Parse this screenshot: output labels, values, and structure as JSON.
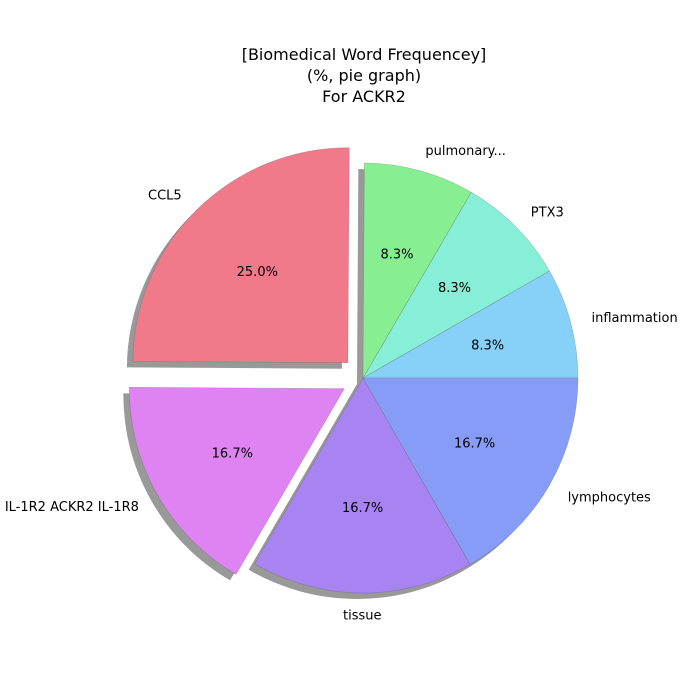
{
  "chart_data": {
    "type": "pie",
    "title_lines": [
      "[Biomedical Word Frequencey]",
      "(%, pie graph)",
      "For ACKR2"
    ],
    "slices": [
      {
        "label": "inflammation",
        "value": 8.3,
        "pct_label": "8.3%",
        "color": "#87d0f7",
        "exploded": false
      },
      {
        "label": "PTX3",
        "value": 8.3,
        "pct_label": "8.3%",
        "color": "#87eed8",
        "exploded": false
      },
      {
        "label": "pulmonary...",
        "value": 8.3,
        "pct_label": "8.3%",
        "color": "#87ef92",
        "exploded": false
      },
      {
        "label": "CCL5",
        "value": 25.0,
        "pct_label": "25.0%",
        "color": "#f07a8a",
        "exploded": true
      },
      {
        "label": "IL-1R2 ACKR2 IL-1R8",
        "value": 16.7,
        "pct_label": "16.7%",
        "color": "#df82f2",
        "exploded": true
      },
      {
        "label": "tissue",
        "value": 16.7,
        "pct_label": "16.7%",
        "color": "#a883f2",
        "exploded": false
      },
      {
        "label": "lymphocytes",
        "value": 16.7,
        "pct_label": "16.7%",
        "color": "#879cf7",
        "exploded": false
      }
    ],
    "start_angle": 0,
    "shadow": true
  }
}
